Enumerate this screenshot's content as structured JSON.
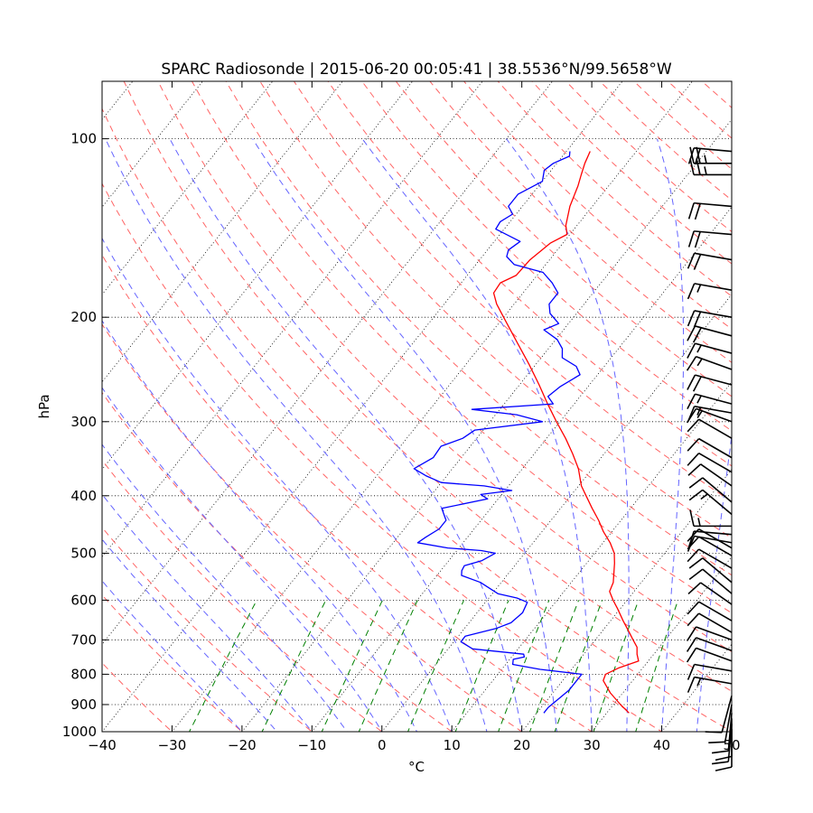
{
  "chart_data": {
    "type": "skew-t",
    "title": "SPARC Radiosonde | 2015-06-20 00:05:41 | 38.5536°N/99.5658°W",
    "xlabel": "°C",
    "ylabel": "hPa",
    "xlim": [
      -40,
      50
    ],
    "ylim_hpa": [
      1000,
      80
    ],
    "x_ticks": [
      {
        "value": -40,
        "label": "−40"
      },
      {
        "value": -30,
        "label": "−30"
      },
      {
        "value": -20,
        "label": "−20"
      },
      {
        "value": -10,
        "label": "−10"
      },
      {
        "value": 0,
        "label": "0"
      },
      {
        "value": 10,
        "label": "10"
      },
      {
        "value": 20,
        "label": "20"
      },
      {
        "value": 30,
        "label": "30"
      },
      {
        "value": 40,
        "label": "40"
      },
      {
        "value": 50,
        "label": "50"
      }
    ],
    "y_ticks": [
      {
        "value": 100,
        "label": "100"
      },
      {
        "value": 200,
        "label": "200"
      },
      {
        "value": 300,
        "label": "300"
      },
      {
        "value": 400,
        "label": "400"
      },
      {
        "value": 500,
        "label": "500"
      },
      {
        "value": 600,
        "label": "600"
      },
      {
        "value": 700,
        "label": "700"
      },
      {
        "value": 800,
        "label": "800"
      },
      {
        "value": 900,
        "label": "900"
      },
      {
        "value": 1000,
        "label": "1000"
      }
    ],
    "isotherms_c": [
      -150,
      -140,
      -130,
      -120,
      -110,
      -100,
      -90,
      -80,
      -70,
      -60,
      -50,
      -40,
      -30,
      -20,
      -10,
      0,
      10,
      20,
      30,
      40,
      50
    ],
    "dry_adiabats_theta_c": [
      -30,
      -20,
      -10,
      0,
      10,
      20,
      30,
      40,
      50,
      60,
      70,
      80,
      90,
      100,
      110,
      120,
      130,
      140,
      150,
      160,
      170,
      180,
      190,
      200,
      210,
      220,
      230
    ],
    "moist_adiabats_t0_c": [
      -20,
      -15,
      -10,
      -5,
      0,
      5,
      10,
      15,
      20,
      25,
      30,
      35,
      40,
      45,
      50
    ],
    "mixing_ratio_lines_gkg": [
      0.4,
      1,
      2,
      3,
      5,
      8,
      12,
      16,
      20,
      28,
      40
    ],
    "colors": {
      "temperature": "#ff0000",
      "dewpoint": "#0000ff",
      "dry_adiabat": "#ff6464",
      "moist_adiabat": "#6464ff",
      "mixing_ratio": "#008000",
      "isotherm": "#000000",
      "barb": "#000000"
    },
    "series": [
      {
        "name": "Temperature",
        "units": "°C",
        "points": [
          {
            "p": 930,
            "t": 33.2
          },
          {
            "p": 900,
            "t": 31.0
          },
          {
            "p": 860,
            "t": 28.2
          },
          {
            "p": 820,
            "t": 25.8
          },
          {
            "p": 800,
            "t": 25.4
          },
          {
            "p": 780,
            "t": 26.6
          },
          {
            "p": 760,
            "t": 28.6
          },
          {
            "p": 740,
            "t": 27.6
          },
          {
            "p": 720,
            "t": 26.8
          },
          {
            "p": 700,
            "t": 25.4
          },
          {
            "p": 680,
            "t": 24.0
          },
          {
            "p": 650,
            "t": 21.8
          },
          {
            "p": 620,
            "t": 19.6
          },
          {
            "p": 600,
            "t": 18.0
          },
          {
            "p": 580,
            "t": 16.5
          },
          {
            "p": 560,
            "t": 16.0
          },
          {
            "p": 520,
            "t": 14.0
          },
          {
            "p": 500,
            "t": 12.8
          },
          {
            "p": 480,
            "t": 11.0
          },
          {
            "p": 460,
            "t": 8.8
          },
          {
            "p": 440,
            "t": 6.8
          },
          {
            "p": 420,
            "t": 4.5
          },
          {
            "p": 400,
            "t": 2.2
          },
          {
            "p": 385,
            "t": 0.4
          },
          {
            "p": 360,
            "t": -2.0
          },
          {
            "p": 340,
            "t": -4.5
          },
          {
            "p": 320,
            "t": -7.3
          },
          {
            "p": 300,
            "t": -10.5
          },
          {
            "p": 280,
            "t": -13.8
          },
          {
            "p": 260,
            "t": -17.2
          },
          {
            "p": 240,
            "t": -21.0
          },
          {
            "p": 220,
            "t": -25.3
          },
          {
            "p": 200,
            "t": -30.0
          },
          {
            "p": 190,
            "t": -32.5
          },
          {
            "p": 182,
            "t": -34.2
          },
          {
            "p": 175,
            "t": -34.4
          },
          {
            "p": 170,
            "t": -33.0
          },
          {
            "p": 160,
            "t": -32.8
          },
          {
            "p": 150,
            "t": -31.8
          },
          {
            "p": 145,
            "t": -30.4
          },
          {
            "p": 140,
            "t": -31.6
          },
          {
            "p": 130,
            "t": -33.2
          },
          {
            "p": 120,
            "t": -34.4
          },
          {
            "p": 115,
            "t": -35.2
          },
          {
            "p": 110,
            "t": -36.0
          },
          {
            "p": 105,
            "t": -36.6
          }
        ]
      },
      {
        "name": "Dewpoint",
        "units": "°C",
        "points": [
          {
            "p": 930,
            "t": 21.0
          },
          {
            "p": 910,
            "t": 21.0
          },
          {
            "p": 880,
            "t": 21.5
          },
          {
            "p": 850,
            "t": 22.0
          },
          {
            "p": 800,
            "t": 22.0
          },
          {
            "p": 785,
            "t": 15.5
          },
          {
            "p": 770,
            "t": 11.0
          },
          {
            "p": 755,
            "t": 10.5
          },
          {
            "p": 748,
            "t": 11.8
          },
          {
            "p": 740,
            "t": 11.4
          },
          {
            "p": 725,
            "t": 3.5
          },
          {
            "p": 705,
            "t": 1.0
          },
          {
            "p": 690,
            "t": 1.0
          },
          {
            "p": 670,
            "t": 4.5
          },
          {
            "p": 655,
            "t": 6.0
          },
          {
            "p": 630,
            "t": 6.5
          },
          {
            "p": 605,
            "t": 6.0
          },
          {
            "p": 595,
            "t": 4.0
          },
          {
            "p": 585,
            "t": 0.8
          },
          {
            "p": 560,
            "t": -3.0
          },
          {
            "p": 545,
            "t": -6.5
          },
          {
            "p": 535,
            "t": -7.0
          },
          {
            "p": 525,
            "t": -7.2
          },
          {
            "p": 515,
            "t": -5.3
          },
          {
            "p": 500,
            "t": -4.2
          },
          {
            "p": 495,
            "t": -6.5
          },
          {
            "p": 490,
            "t": -11.6
          },
          {
            "p": 480,
            "t": -16.5
          },
          {
            "p": 470,
            "t": -16.0
          },
          {
            "p": 455,
            "t": -15.0
          },
          {
            "p": 440,
            "t": -15.0
          },
          {
            "p": 420,
            "t": -17.0
          },
          {
            "p": 405,
            "t": -11.5
          },
          {
            "p": 398,
            "t": -13.0
          },
          {
            "p": 392,
            "t": -9.0
          },
          {
            "p": 385,
            "t": -13.5
          },
          {
            "p": 380,
            "t": -20.0
          },
          {
            "p": 370,
            "t": -23.0
          },
          {
            "p": 360,
            "t": -25.5
          },
          {
            "p": 345,
            "t": -24.0
          },
          {
            "p": 330,
            "t": -24.2
          },
          {
            "p": 320,
            "t": -22.0
          },
          {
            "p": 310,
            "t": -21.2
          },
          {
            "p": 300,
            "t": -12.5
          },
          {
            "p": 292,
            "t": -17.0
          },
          {
            "p": 286,
            "t": -24.0
          },
          {
            "p": 280,
            "t": -13.0
          },
          {
            "p": 272,
            "t": -14.6
          },
          {
            "p": 262,
            "t": -14.0
          },
          {
            "p": 250,
            "t": -12.5
          },
          {
            "p": 242,
            "t": -14.0
          },
          {
            "p": 234,
            "t": -17.0
          },
          {
            "p": 226,
            "t": -18.0
          },
          {
            "p": 218,
            "t": -19.8
          },
          {
            "p": 210,
            "t": -22.8
          },
          {
            "p": 205,
            "t": -21.4
          },
          {
            "p": 197,
            "t": -23.8
          },
          {
            "p": 190,
            "t": -25.0
          },
          {
            "p": 182,
            "t": -25.0
          },
          {
            "p": 175,
            "t": -27.0
          },
          {
            "p": 168,
            "t": -29.5
          },
          {
            "p": 163,
            "t": -34.5
          },
          {
            "p": 158,
            "t": -36.5
          },
          {
            "p": 154,
            "t": -37.0
          },
          {
            "p": 149,
            "t": -36.3
          },
          {
            "p": 142,
            "t": -41.2
          },
          {
            "p": 138,
            "t": -41.4
          },
          {
            "p": 134,
            "t": -40.5
          },
          {
            "p": 130,
            "t": -42.0
          },
          {
            "p": 124,
            "t": -42.0
          },
          {
            "p": 118,
            "t": -40.0
          },
          {
            "p": 113,
            "t": -41.0
          },
          {
            "p": 110,
            "t": -40.5
          },
          {
            "p": 107,
            "t": -39.0
          },
          {
            "p": 105,
            "t": -39.5
          }
        ]
      }
    ],
    "wind_barbs": [
      {
        "p": 105,
        "speed_kt": 20,
        "dir_deg": 275
      },
      {
        "p": 110,
        "speed_kt": 25,
        "dir_deg": 270
      },
      {
        "p": 115,
        "speed_kt": 25,
        "dir_deg": 270
      },
      {
        "p": 130,
        "speed_kt": 20,
        "dir_deg": 275
      },
      {
        "p": 145,
        "speed_kt": 20,
        "dir_deg": 275
      },
      {
        "p": 160,
        "speed_kt": 20,
        "dir_deg": 280
      },
      {
        "p": 180,
        "speed_kt": 15,
        "dir_deg": 280
      },
      {
        "p": 200,
        "speed_kt": 20,
        "dir_deg": 280
      },
      {
        "p": 215,
        "speed_kt": 20,
        "dir_deg": 285
      },
      {
        "p": 230,
        "speed_kt": 15,
        "dir_deg": 285
      },
      {
        "p": 245,
        "speed_kt": 15,
        "dir_deg": 290
      },
      {
        "p": 260,
        "speed_kt": 20,
        "dir_deg": 285
      },
      {
        "p": 280,
        "speed_kt": 15,
        "dir_deg": 285
      },
      {
        "p": 290,
        "speed_kt": 15,
        "dir_deg": 280
      },
      {
        "p": 300,
        "speed_kt": 15,
        "dir_deg": 290
      },
      {
        "p": 320,
        "speed_kt": 10,
        "dir_deg": 300
      },
      {
        "p": 345,
        "speed_kt": 10,
        "dir_deg": 300
      },
      {
        "p": 365,
        "speed_kt": 10,
        "dir_deg": 300
      },
      {
        "p": 385,
        "speed_kt": 10,
        "dir_deg": 305
      },
      {
        "p": 410,
        "speed_kt": 10,
        "dir_deg": 310
      },
      {
        "p": 430,
        "speed_kt": 15,
        "dir_deg": 310
      },
      {
        "p": 450,
        "speed_kt": 15,
        "dir_deg": 270
      },
      {
        "p": 465,
        "speed_kt": 10,
        "dir_deg": 275
      },
      {
        "p": 480,
        "speed_kt": 10,
        "dir_deg": 280
      },
      {
        "p": 490,
        "speed_kt": 10,
        "dir_deg": 300
      },
      {
        "p": 505,
        "speed_kt": 10,
        "dir_deg": 300
      },
      {
        "p": 530,
        "speed_kt": 10,
        "dir_deg": 300
      },
      {
        "p": 560,
        "speed_kt": 10,
        "dir_deg": 310
      },
      {
        "p": 585,
        "speed_kt": 10,
        "dir_deg": 310
      },
      {
        "p": 610,
        "speed_kt": 10,
        "dir_deg": 305
      },
      {
        "p": 650,
        "speed_kt": 10,
        "dir_deg": 300
      },
      {
        "p": 680,
        "speed_kt": 10,
        "dir_deg": 300
      },
      {
        "p": 700,
        "speed_kt": 10,
        "dir_deg": 290
      },
      {
        "p": 730,
        "speed_kt": 10,
        "dir_deg": 290
      },
      {
        "p": 760,
        "speed_kt": 10,
        "dir_deg": 290
      },
      {
        "p": 790,
        "speed_kt": 10,
        "dir_deg": 280
      },
      {
        "p": 830,
        "speed_kt": 15,
        "dir_deg": 280
      },
      {
        "p": 870,
        "speed_kt": 10,
        "dir_deg": 195
      },
      {
        "p": 900,
        "speed_kt": 10,
        "dir_deg": 190
      },
      {
        "p": 930,
        "speed_kt": 10,
        "dir_deg": 185
      },
      {
        "p": 950,
        "speed_kt": 10,
        "dir_deg": 180
      },
      {
        "p": 970,
        "speed_kt": 10,
        "dir_deg": 185
      },
      {
        "p": 990,
        "speed_kt": 10,
        "dir_deg": 180
      }
    ]
  }
}
